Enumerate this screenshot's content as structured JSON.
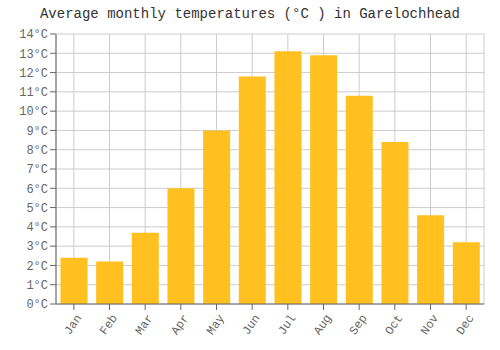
{
  "chart_data": {
    "type": "bar",
    "title": "Average monthly temperatures (°C ) in Garelochhead",
    "categories": [
      "Jan",
      "Feb",
      "Mar",
      "Apr",
      "May",
      "Jun",
      "Jul",
      "Aug",
      "Sep",
      "Oct",
      "Nov",
      "Dec"
    ],
    "values": [
      2.4,
      2.2,
      3.7,
      6.0,
      9.0,
      11.8,
      13.1,
      12.9,
      10.8,
      8.4,
      4.6,
      3.2
    ],
    "color": "#FFC020",
    "ylim": [
      0,
      14
    ],
    "yticks": [
      {
        "value": 0,
        "label": "0°C"
      },
      {
        "value": 1,
        "label": "1°C"
      },
      {
        "value": 2,
        "label": "2°C"
      },
      {
        "value": 3,
        "label": "3°C"
      },
      {
        "value": 4,
        "label": "4°C"
      },
      {
        "value": 5,
        "label": "5°C"
      },
      {
        "value": 6,
        "label": "6°C"
      },
      {
        "value": 7,
        "label": "7°C"
      },
      {
        "value": 8,
        "label": "8°C"
      },
      {
        "value": 9,
        "label": "9°C"
      },
      {
        "value": 10,
        "label": "10°C"
      },
      {
        "value": 11,
        "label": "11°C"
      },
      {
        "value": 12,
        "label": "12°C"
      },
      {
        "value": 13,
        "label": "13°C"
      },
      {
        "value": 14,
        "label": "14°C"
      }
    ],
    "grid": true
  }
}
